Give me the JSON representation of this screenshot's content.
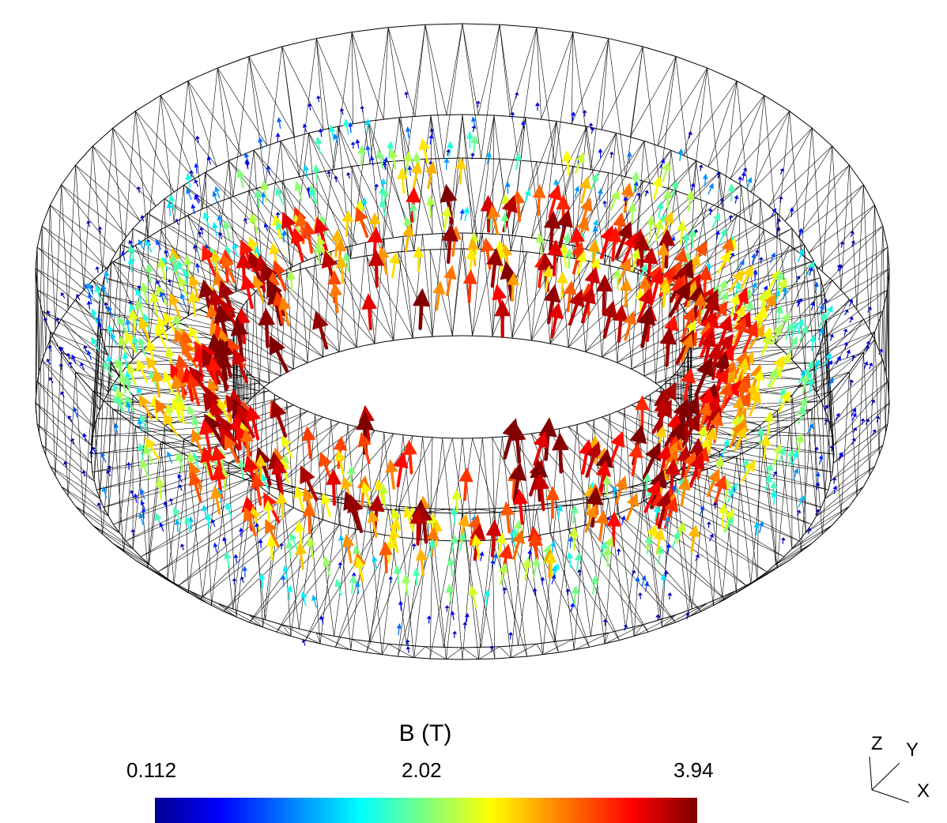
{
  "colorbar": {
    "title": "B (T)",
    "min_label": "0.112",
    "mid_label": "2.02",
    "max_label": "3.94",
    "colormap": [
      "#00008f",
      "#0000ff",
      "#00ffff",
      "#7fff7f",
      "#ffff00",
      "#ff7f00",
      "#ff0000",
      "#800000"
    ]
  },
  "axes": {
    "z": "Z",
    "y": "Y",
    "x": "X"
  },
  "mesh_color": "#000000",
  "background": "#ffffff"
}
